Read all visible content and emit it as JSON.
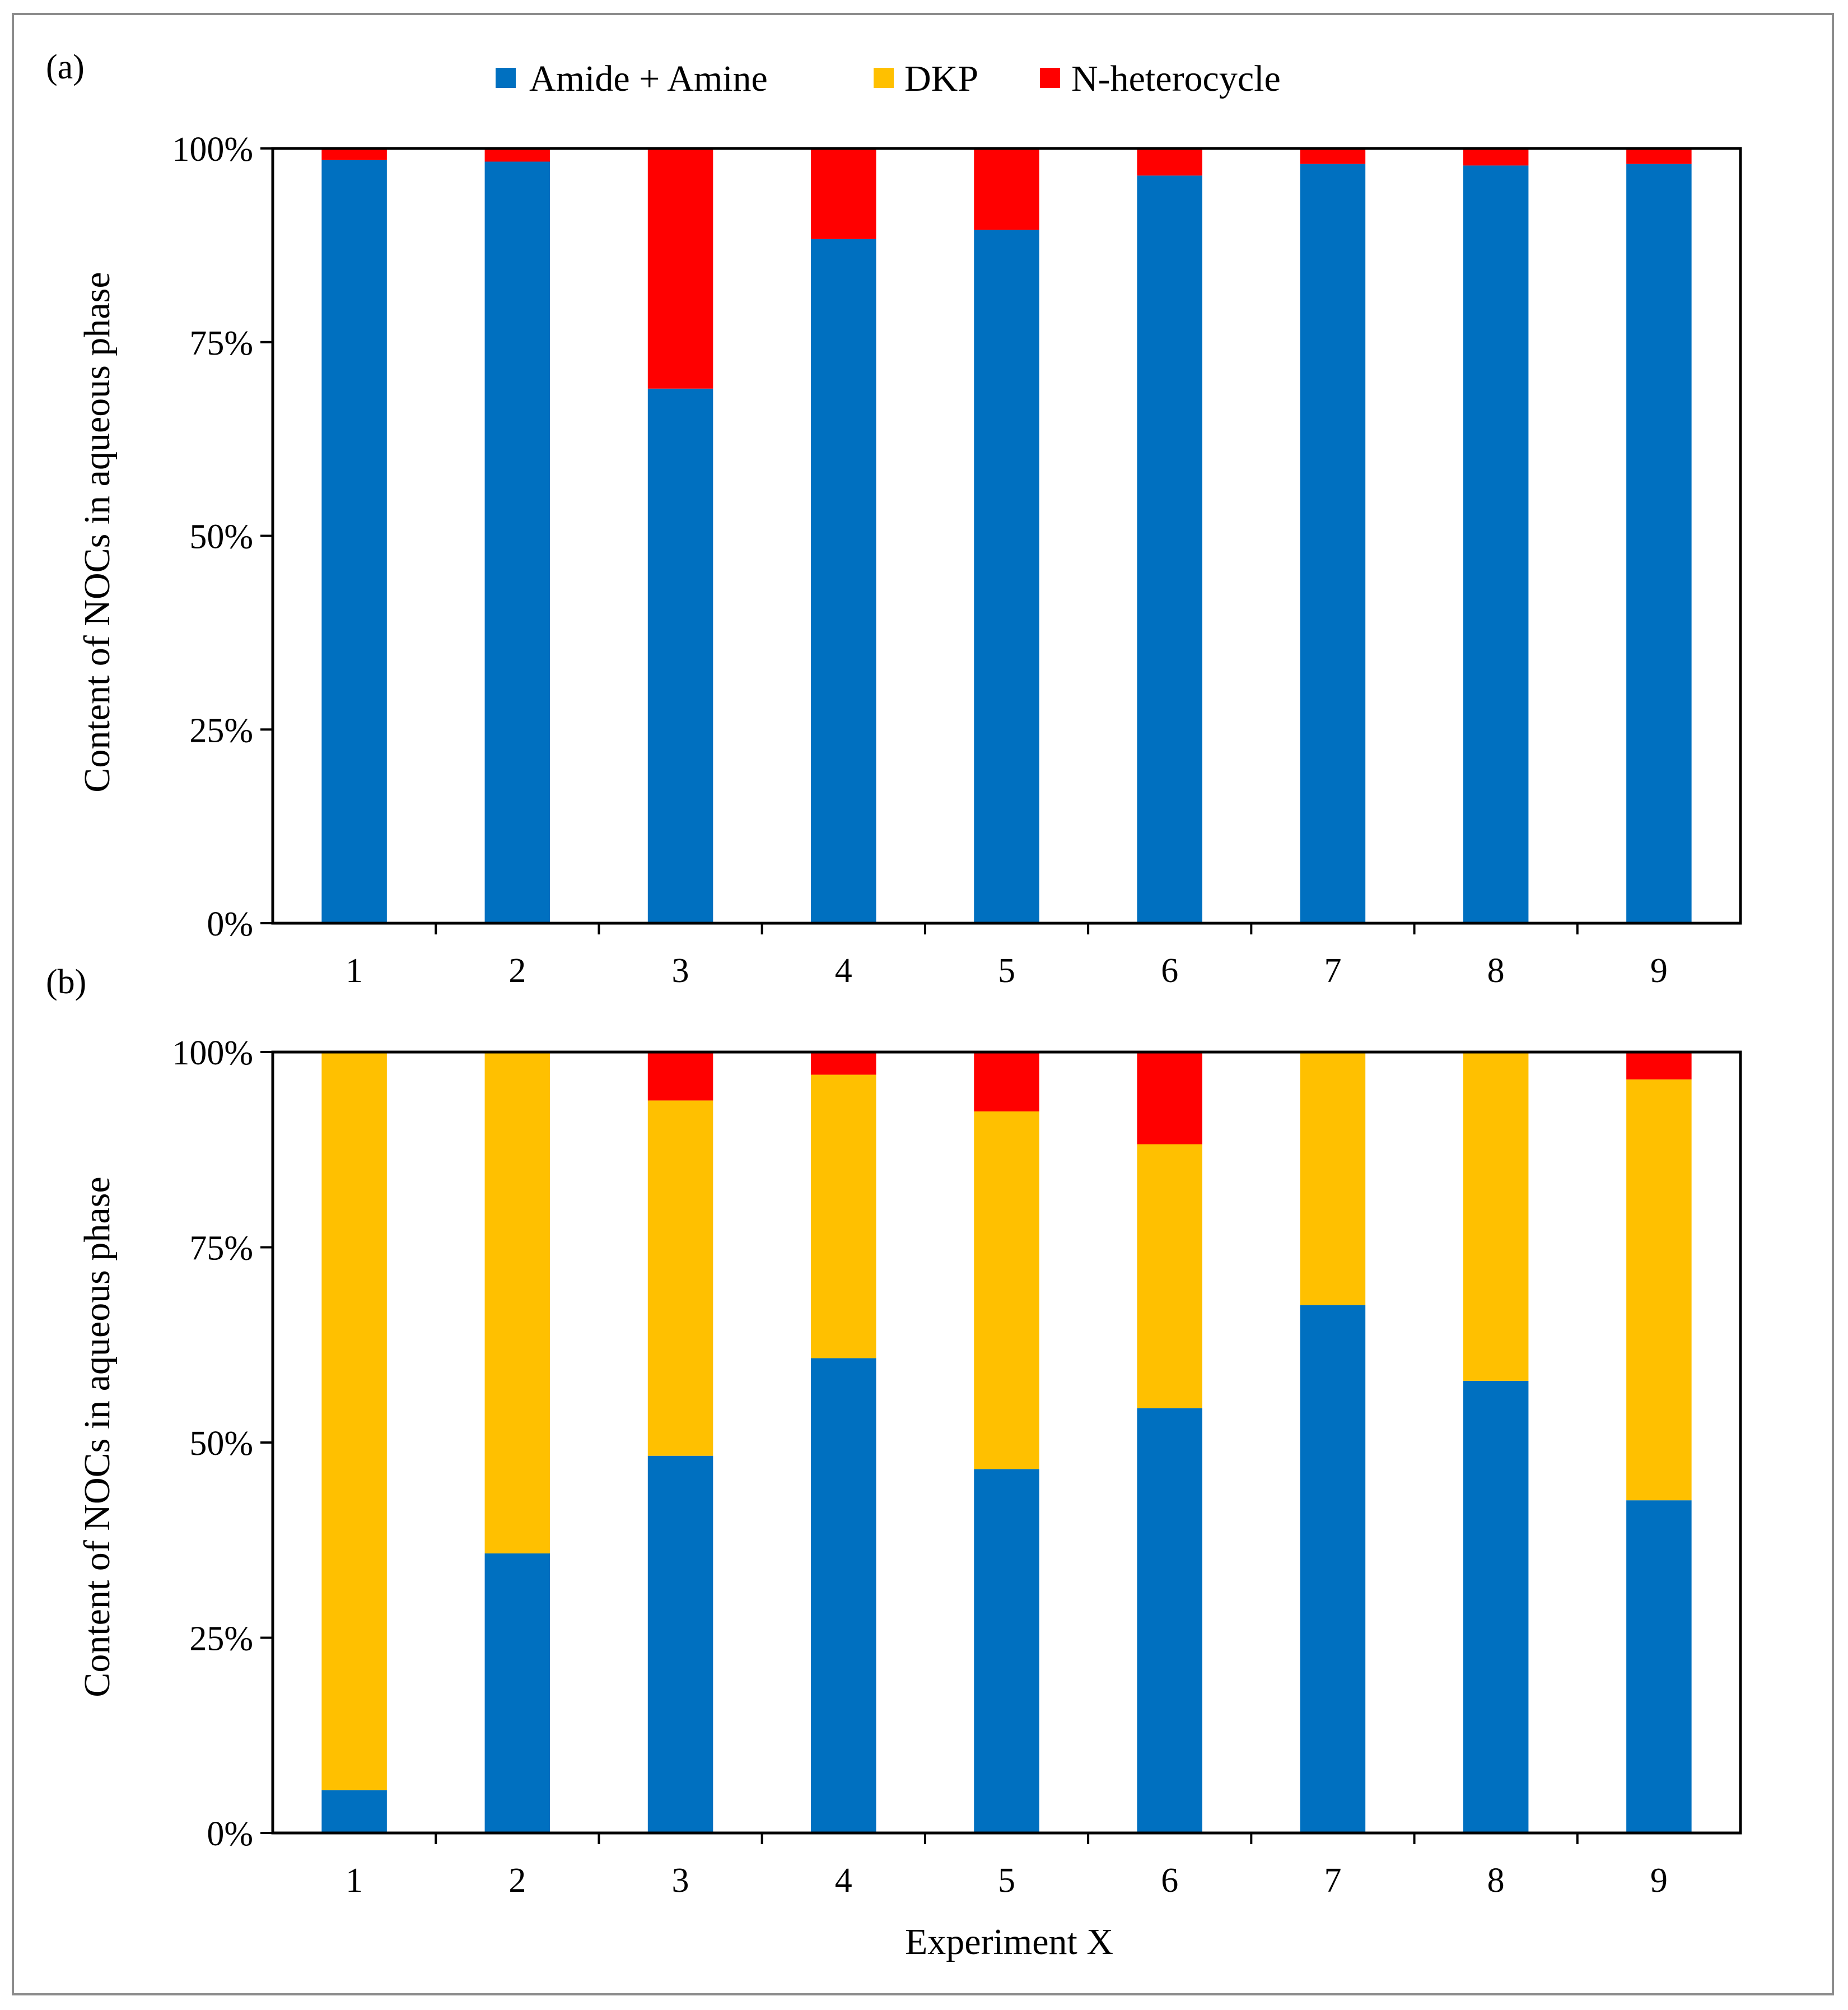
{
  "figure": {
    "xlabel": "Experiment X"
  },
  "legend": [
    {
      "label": "Amide + Amine",
      "color": "#0070C0"
    },
    {
      "label": "DKP",
      "color": "#FFC000"
    },
    {
      "label": "N-heterocycle",
      "color": "#FF0000"
    }
  ],
  "chart_data": [
    {
      "type": "bar",
      "stacked": true,
      "panel_label": "(a)",
      "ylabel": "Content of NOCs in aqueous phase",
      "xlabel": "",
      "ylim": [
        0,
        100
      ],
      "yticks": [
        "0%",
        "25%",
        "50%",
        "75%",
        "100%"
      ],
      "categories": [
        "1",
        "2",
        "3",
        "4",
        "5",
        "6",
        "7",
        "8",
        "9"
      ],
      "series": [
        {
          "name": "Amide + Amine",
          "color": "#0070C0",
          "values": [
            98.5,
            98.3,
            69.0,
            88.3,
            89.5,
            96.5,
            98.0,
            97.8,
            98.0
          ]
        },
        {
          "name": "DKP",
          "color": "#FFC000",
          "values": [
            0,
            0,
            0,
            0,
            0,
            0,
            0,
            0,
            0
          ]
        },
        {
          "name": "N-heterocycle",
          "color": "#FF0000",
          "values": [
            1.5,
            1.7,
            31.0,
            11.7,
            10.5,
            3.5,
            2.0,
            2.2,
            2.0
          ]
        }
      ]
    },
    {
      "type": "bar",
      "stacked": true,
      "panel_label": "(b)",
      "ylabel": "Content of NOCs in aqueous phase",
      "xlabel": "Experiment X",
      "ylim": [
        0,
        100
      ],
      "yticks": [
        "0%",
        "25%",
        "50%",
        "75%",
        "100%"
      ],
      "categories": [
        "1",
        "2",
        "3",
        "4",
        "5",
        "6",
        "7",
        "8",
        "9"
      ],
      "series": [
        {
          "name": "Amide + Amine",
          "color": "#0070C0",
          "values": [
            5.5,
            35.8,
            48.3,
            60.8,
            46.6,
            54.4,
            67.6,
            57.9,
            42.6
          ]
        },
        {
          "name": "DKP",
          "color": "#FFC000",
          "values": [
            94.5,
            64.2,
            45.5,
            36.3,
            45.8,
            33.8,
            32.4,
            42.1,
            53.9
          ]
        },
        {
          "name": "N-heterocycle",
          "color": "#FF0000",
          "values": [
            0,
            0,
            6.2,
            2.9,
            7.6,
            11.8,
            0,
            0,
            3.5
          ]
        }
      ]
    }
  ]
}
